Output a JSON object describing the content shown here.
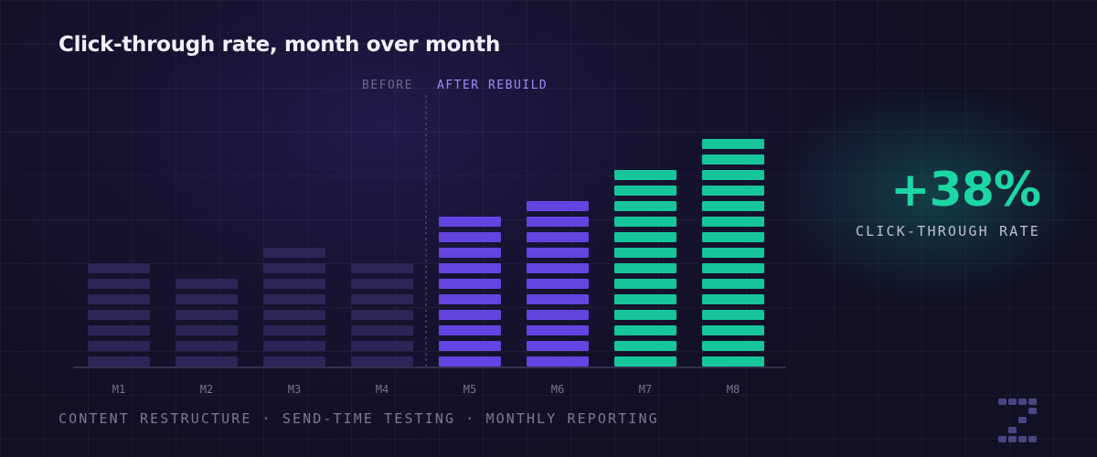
{
  "chart_data": {
    "type": "bar",
    "title": "Click-through rate, month over month",
    "categories": [
      "M1",
      "M2",
      "M3",
      "M4",
      "M5",
      "M6",
      "M7",
      "M8"
    ],
    "values": [
      7,
      6,
      8,
      7,
      10,
      11,
      13,
      15
    ],
    "phase": [
      "before",
      "before",
      "before",
      "before",
      "after",
      "after",
      "after",
      "after"
    ],
    "phase_labels": {
      "before": "BEFORE",
      "after": "AFTER REBUILD"
    },
    "colors": {
      "before": "#2c2556",
      "after": "#6444e0",
      "peak": "#16c69a",
      "divider": "#5a5673",
      "baseline": "#3c3958"
    },
    "ylim": [
      0,
      17
    ],
    "grid": true,
    "legend": "none"
  },
  "stat": {
    "value": "+38%",
    "label": "CLICK-THROUGH RATE",
    "color": "#1ed6a4"
  },
  "footer": {
    "text": "CONTENT RESTRUCTURE · SEND-TIME TESTING · MONTHLY REPORTING"
  }
}
